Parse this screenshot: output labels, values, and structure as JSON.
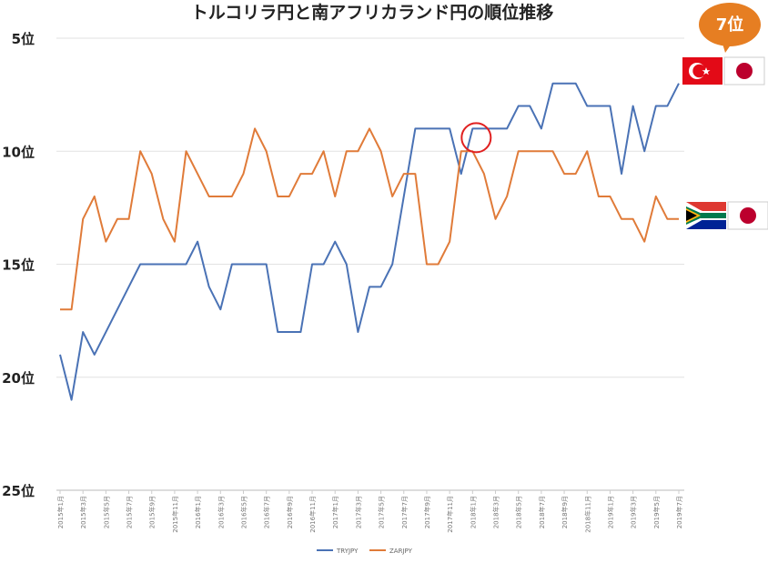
{
  "chart_data": {
    "type": "line",
    "title": "トルコリラ円と南アフリカランド円の順位推移",
    "y_ticks": [
      {
        "value": 5,
        "label": "5位"
      },
      {
        "value": 10,
        "label": "10位"
      },
      {
        "value": 15,
        "label": "15位"
      },
      {
        "value": 20,
        "label": "20位"
      },
      {
        "value": 25,
        "label": "25位"
      }
    ],
    "ylim": [
      5,
      25
    ],
    "y_inverted": true,
    "grid": true,
    "x": [
      "2015年1月",
      "2015年2月",
      "2015年3月",
      "2015年4月",
      "2015年5月",
      "2015年6月",
      "2015年7月",
      "2015年8月",
      "2015年9月",
      "2015年10月",
      "2015年11月",
      "2015年12月",
      "2016年1月",
      "2016年2月",
      "2016年3月",
      "2016年4月",
      "2016年5月",
      "2016年6月",
      "2016年7月",
      "2016年8月",
      "2016年9月",
      "2016年10月",
      "2016年11月",
      "2016年12月",
      "2017年1月",
      "2017年2月",
      "2017年3月",
      "2017年4月",
      "2017年5月",
      "2017年6月",
      "2017年7月",
      "2017年8月",
      "2017年9月",
      "2017年10月",
      "2017年11月",
      "2017年12月",
      "2018年1月",
      "2018年2月",
      "2018年3月",
      "2018年4月",
      "2018年5月",
      "2018年6月",
      "2018年7月",
      "2018年8月",
      "2018年9月",
      "2018年10月",
      "2018年11月",
      "2018年12月",
      "2019年1月",
      "2019年2月",
      "2019年3月",
      "2019年4月",
      "2019年5月",
      "2019年6月",
      "2019年7月"
    ],
    "x_tick_labels": [
      "2015年1月",
      "2015年3月",
      "2015年5月",
      "2015年7月",
      "2015年9月",
      "2015年11月",
      "2016年1月",
      "2016年3月",
      "2016年5月",
      "2016年7月",
      "2016年9月",
      "2016年11月",
      "2017年1月",
      "2017年3月",
      "2017年5月",
      "2017年7月",
      "2017年9月",
      "2017年11月",
      "2018年1月",
      "2018年3月",
      "2018年5月",
      "2018年7月",
      "2018年9月",
      "2018年11月",
      "2019年1月",
      "2019年3月",
      "2019年5月",
      "2019年7月"
    ],
    "series": [
      {
        "name": "TRYJPY",
        "color": "#4a72b5",
        "values": [
          19,
          21,
          18,
          19,
          18,
          17,
          16,
          15,
          15,
          15,
          15,
          15,
          14,
          16,
          17,
          15,
          15,
          15,
          15,
          18,
          18,
          18,
          15,
          15,
          14,
          15,
          18,
          16,
          16,
          15,
          12,
          9,
          9,
          9,
          9,
          11,
          9,
          9,
          9,
          9,
          8,
          8,
          9,
          7,
          7,
          7,
          8,
          8,
          8,
          11,
          8,
          10,
          8,
          8,
          7
        ]
      },
      {
        "name": "ZARJPY",
        "color": "#e07b39",
        "values": [
          17,
          17,
          13,
          12,
          14,
          13,
          13,
          10,
          11,
          13,
          14,
          10,
          11,
          12,
          12,
          12,
          11,
          9,
          10,
          12,
          12,
          11,
          11,
          10,
          12,
          10,
          10,
          9,
          10,
          12,
          11,
          11,
          15,
          15,
          14,
          10,
          10,
          11,
          13,
          12,
          10,
          10,
          10,
          10,
          11,
          11,
          10,
          12,
          12,
          13,
          13,
          14,
          12,
          13,
          13
        ]
      }
    ],
    "legend_position": "bottom-center",
    "highlight_circle_at": "2018年1月",
    "badge": {
      "text": "7位",
      "color": "#e67e22"
    }
  }
}
